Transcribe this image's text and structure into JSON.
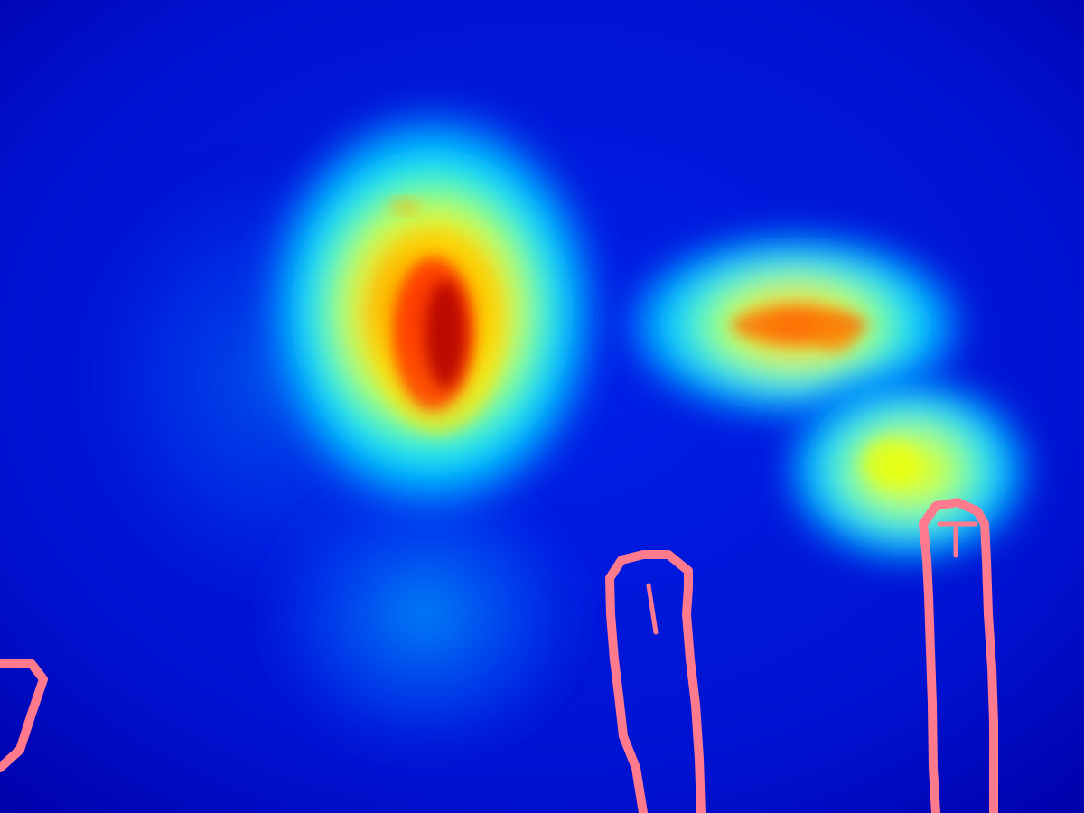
{
  "heatmap": {
    "colormap": "jet",
    "background_color": "#0010c8",
    "edge_dark_color": "#0000a0",
    "outline_color": "#ff7a8c",
    "hotspots": [
      {
        "name": "hotspot-left",
        "intensity": 1.0
      },
      {
        "name": "hotspot-right-upper",
        "intensity": 0.85
      },
      {
        "name": "hotspot-right-lower",
        "intensity": 0.65
      }
    ],
    "outlines": [
      "outline-left-partial",
      "outline-middle-post",
      "outline-right-post"
    ]
  }
}
